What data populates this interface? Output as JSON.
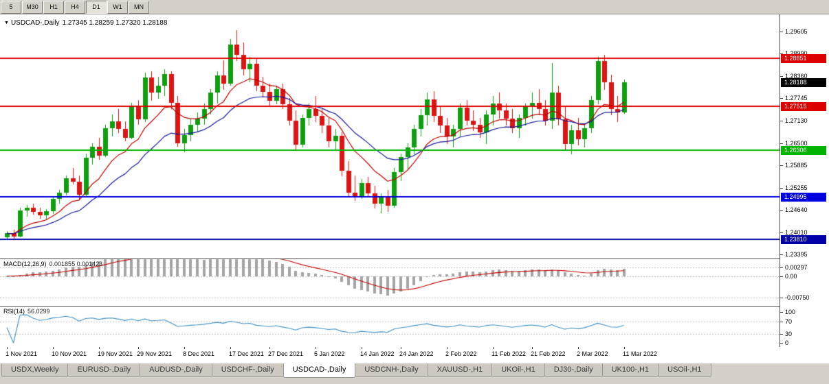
{
  "window_title": "USDCAD-,Daily",
  "toolbar": {
    "periods": [
      "5",
      "M30",
      "H1",
      "H4",
      "D1",
      "W1",
      "MN"
    ],
    "active": "D1"
  },
  "chart_title": {
    "dropdown_icon": "▼",
    "symbol_period": "USDCAD-,Daily",
    "ohlc": "1.27345 1.28259 1.27320 1.28188"
  },
  "chart_data": {
    "type": "candlestick",
    "symbol": "USDCAD-",
    "timeframe": "Daily",
    "current_bar": {
      "open": 1.27345,
      "high": 1.28259,
      "low": 1.2732,
      "close": 1.28188
    },
    "up_color": "#0f9e0f",
    "down_color": "#dc1414",
    "price_axis": {
      "min": 1.23395,
      "max": 1.29605,
      "ticks": [
        "1.29605",
        "1.28990",
        "1.28360",
        "1.27745",
        "1.27130",
        "1.26500",
        "1.25885",
        "1.25255",
        "1.24640",
        "1.24010",
        "1.23395"
      ]
    },
    "price_markers": [
      {
        "label": "1.28851",
        "price": 1.28851,
        "bg": "#dd0000"
      },
      {
        "label": "1.28188",
        "price": 1.28188,
        "bg": "#000000"
      },
      {
        "label": "1.27515",
        "price": 1.27515,
        "bg": "#dd0000"
      },
      {
        "label": "1.26306",
        "price": 1.26306,
        "bg": "#00b300"
      },
      {
        "label": "1.24995",
        "price": 1.24995,
        "bg": "#0000e0"
      },
      {
        "label": "1.23810",
        "price": 1.2381,
        "bg": "#0000a8"
      }
    ],
    "hlines": [
      {
        "price": 1.28851,
        "color": "#dd0000",
        "width": 2
      },
      {
        "price": 1.27515,
        "color": "#dd0000",
        "width": 2
      },
      {
        "price": 1.26306,
        "color": "#00b300",
        "width": 2
      },
      {
        "price": 1.24995,
        "color": "#0000e0",
        "width": 2
      },
      {
        "price": 1.2381,
        "color": "#0000a8",
        "width": 2
      }
    ],
    "moving_averages": [
      {
        "period": 10,
        "color": "#c00000"
      },
      {
        "period": 20,
        "color": "#16169a"
      }
    ],
    "x_labels": [
      [
        0,
        "1 Nov 2021"
      ],
      [
        7,
        "10 Nov 2021"
      ],
      [
        14,
        "19 Nov 2021"
      ],
      [
        20,
        "29 Nov 2021"
      ],
      [
        27,
        "8 Dec 2021"
      ],
      [
        34,
        "17 Dec 2021"
      ],
      [
        40,
        "27 Dec 2021"
      ],
      [
        47,
        "5 Jan 2022"
      ],
      [
        54,
        "14 Jan 2022"
      ],
      [
        60,
        "24 Jan 2022"
      ],
      [
        67,
        "2 Feb 2022"
      ],
      [
        74,
        "11 Feb 2022"
      ],
      [
        80,
        "21 Feb 2022"
      ],
      [
        87,
        "2 Mar 2022"
      ],
      [
        94,
        "11 Mar 2022"
      ]
    ],
    "candles": [
      [
        1.2387,
        1.2405,
        1.238,
        1.2398
      ],
      [
        1.2398,
        1.2408,
        1.2384,
        1.239
      ],
      [
        1.239,
        1.247,
        1.2387,
        1.2462
      ],
      [
        1.2462,
        1.2478,
        1.2445,
        1.247
      ],
      [
        1.247,
        1.248,
        1.245,
        1.2458
      ],
      [
        1.2458,
        1.247,
        1.2438,
        1.2448
      ],
      [
        1.2448,
        1.2465,
        1.2435,
        1.246
      ],
      [
        1.246,
        1.25,
        1.2453,
        1.2494
      ],
      [
        1.2494,
        1.252,
        1.248,
        1.2512
      ],
      [
        1.2512,
        1.256,
        1.2504,
        1.2552
      ],
      [
        1.2552,
        1.258,
        1.2534,
        1.2542
      ],
      [
        1.2542,
        1.256,
        1.249,
        1.2505
      ],
      [
        1.2505,
        1.262,
        1.25,
        1.2608
      ],
      [
        1.2608,
        1.265,
        1.259,
        1.264
      ],
      [
        1.264,
        1.2665,
        1.2604,
        1.2615
      ],
      [
        1.2615,
        1.27,
        1.261,
        1.2692
      ],
      [
        1.2692,
        1.273,
        1.2668,
        1.271
      ],
      [
        1.271,
        1.2745,
        1.2678,
        1.269
      ],
      [
        1.269,
        1.271,
        1.2654,
        1.2665
      ],
      [
        1.2665,
        1.2762,
        1.266,
        1.275
      ],
      [
        1.275,
        1.277,
        1.27,
        1.2715
      ],
      [
        1.2715,
        1.2845,
        1.2708,
        1.2832
      ],
      [
        1.2832,
        1.285,
        1.2768,
        1.279
      ],
      [
        1.279,
        1.2835,
        1.2774,
        1.281
      ],
      [
        1.281,
        1.2855,
        1.278,
        1.2842
      ],
      [
        1.2842,
        1.285,
        1.2744,
        1.2762
      ],
      [
        1.2762,
        1.278,
        1.264,
        1.265
      ],
      [
        1.265,
        1.269,
        1.2624,
        1.2672
      ],
      [
        1.2672,
        1.2715,
        1.2654,
        1.27
      ],
      [
        1.27,
        1.2735,
        1.268,
        1.2718
      ],
      [
        1.2718,
        1.276,
        1.27,
        1.2745
      ],
      [
        1.2745,
        1.28,
        1.273,
        1.279
      ],
      [
        1.279,
        1.285,
        1.276,
        1.2838
      ],
      [
        1.2838,
        1.288,
        1.2798,
        1.2815
      ],
      [
        1.2815,
        1.294,
        1.281,
        1.2925
      ],
      [
        1.2925,
        1.2964,
        1.2878,
        1.2895
      ],
      [
        1.2895,
        1.293,
        1.2838,
        1.2855
      ],
      [
        1.2855,
        1.289,
        1.282,
        1.287
      ],
      [
        1.287,
        1.2885,
        1.2795,
        1.281
      ],
      [
        1.281,
        1.2835,
        1.2778,
        1.2792
      ],
      [
        1.2792,
        1.2815,
        1.2754,
        1.2768
      ],
      [
        1.2768,
        1.281,
        1.2758,
        1.28
      ],
      [
        1.28,
        1.2815,
        1.2744,
        1.2758
      ],
      [
        1.2758,
        1.2775,
        1.2698,
        1.2712
      ],
      [
        1.2712,
        1.274,
        1.263,
        1.2645
      ],
      [
        1.2645,
        1.273,
        1.2638,
        1.272
      ],
      [
        1.272,
        1.276,
        1.2698,
        1.2745
      ],
      [
        1.2745,
        1.278,
        1.2708,
        1.2725
      ],
      [
        1.2725,
        1.2745,
        1.2678,
        1.2698
      ],
      [
        1.2698,
        1.272,
        1.2638,
        1.2655
      ],
      [
        1.2655,
        1.269,
        1.2628,
        1.267
      ],
      [
        1.267,
        1.268,
        1.2558,
        1.2572
      ],
      [
        1.2572,
        1.26,
        1.2498,
        1.2512
      ],
      [
        1.2512,
        1.256,
        1.2488,
        1.2502
      ],
      [
        1.2502,
        1.255,
        1.2494,
        1.2538
      ],
      [
        1.2538,
        1.2555,
        1.2498,
        1.251
      ],
      [
        1.251,
        1.253,
        1.2468,
        1.248
      ],
      [
        1.248,
        1.251,
        1.2455,
        1.2498
      ],
      [
        1.2498,
        1.252,
        1.2458,
        1.2475
      ],
      [
        1.2475,
        1.258,
        1.247,
        1.2568
      ],
      [
        1.2568,
        1.262,
        1.2544,
        1.261
      ],
      [
        1.261,
        1.265,
        1.2578,
        1.2638
      ],
      [
        1.2638,
        1.27,
        1.2618,
        1.269
      ],
      [
        1.269,
        1.2745,
        1.2668,
        1.2728
      ],
      [
        1.2728,
        1.279,
        1.2698,
        1.2772
      ],
      [
        1.2772,
        1.2795,
        1.2708,
        1.2725
      ],
      [
        1.2725,
        1.275,
        1.2678,
        1.2698
      ],
      [
        1.2698,
        1.272,
        1.2648,
        1.2668
      ],
      [
        1.2668,
        1.27,
        1.2638,
        1.269
      ],
      [
        1.269,
        1.276,
        1.2668,
        1.2748
      ],
      [
        1.2748,
        1.277,
        1.2698,
        1.2712
      ],
      [
        1.2712,
        1.274,
        1.2684,
        1.27
      ],
      [
        1.27,
        1.272,
        1.2664,
        1.268
      ],
      [
        1.268,
        1.274,
        1.2648,
        1.273
      ],
      [
        1.273,
        1.278,
        1.2698,
        1.276
      ],
      [
        1.276,
        1.279,
        1.2718,
        1.274
      ],
      [
        1.274,
        1.276,
        1.2698,
        1.2718
      ],
      [
        1.2718,
        1.2745,
        1.2678,
        1.2692
      ],
      [
        1.2692,
        1.273,
        1.2664,
        1.272
      ],
      [
        1.272,
        1.276,
        1.2698,
        1.275
      ],
      [
        1.275,
        1.279,
        1.2718,
        1.2762
      ],
      [
        1.2762,
        1.28,
        1.2728,
        1.2745
      ],
      [
        1.2745,
        1.277,
        1.2698,
        1.2712
      ],
      [
        1.2712,
        1.2872,
        1.269,
        1.279
      ],
      [
        1.279,
        1.281,
        1.2698,
        1.2715
      ],
      [
        1.2715,
        1.275,
        1.2628,
        1.2648
      ],
      [
        1.2648,
        1.27,
        1.2618,
        1.2685
      ],
      [
        1.2685,
        1.272,
        1.2644,
        1.266
      ],
      [
        1.266,
        1.27,
        1.2638,
        1.2692
      ],
      [
        1.2692,
        1.278,
        1.2678,
        1.277
      ],
      [
        1.277,
        1.289,
        1.2758,
        1.2878
      ],
      [
        1.2878,
        1.2895,
        1.2798,
        1.282
      ],
      [
        1.282,
        1.284,
        1.2728,
        1.2745
      ],
      [
        1.2745,
        1.278,
        1.2708,
        1.27345
      ],
      [
        1.27345,
        1.28259,
        1.2732,
        1.28188
      ]
    ],
    "indicators": {
      "macd": {
        "label": "MACD(12,26,9)",
        "current": "0.001855 0.001423",
        "fast": 12,
        "slow": 26,
        "signal": 9,
        "axis_labels": [
          "0.00297",
          "0.00",
          "-0.00750"
        ],
        "histogram_color": "#a4a4a4",
        "signal_color": "#c00000"
      },
      "rsi": {
        "label": "RSI(14)",
        "current": "56.0299",
        "period": 14,
        "axis_labels": [
          "100",
          "70",
          "30",
          "0"
        ],
        "levels": [
          70,
          30
        ],
        "color": "#3f8fc5"
      }
    }
  },
  "tab_bar": {
    "tabs": [
      "USDX,Weekly",
      "EURUSD-,Daily",
      "AUDUSD-,Daily",
      "USDCHF-,Daily",
      "USDCAD-,Daily",
      "USDCNH-,Daily",
      "XAUUSD-,H1",
      "UKOil-,H1",
      "DJ30-,Daily",
      "UK100-,H1",
      "USOil-,H1"
    ],
    "active": "USDCAD-,Daily"
  }
}
